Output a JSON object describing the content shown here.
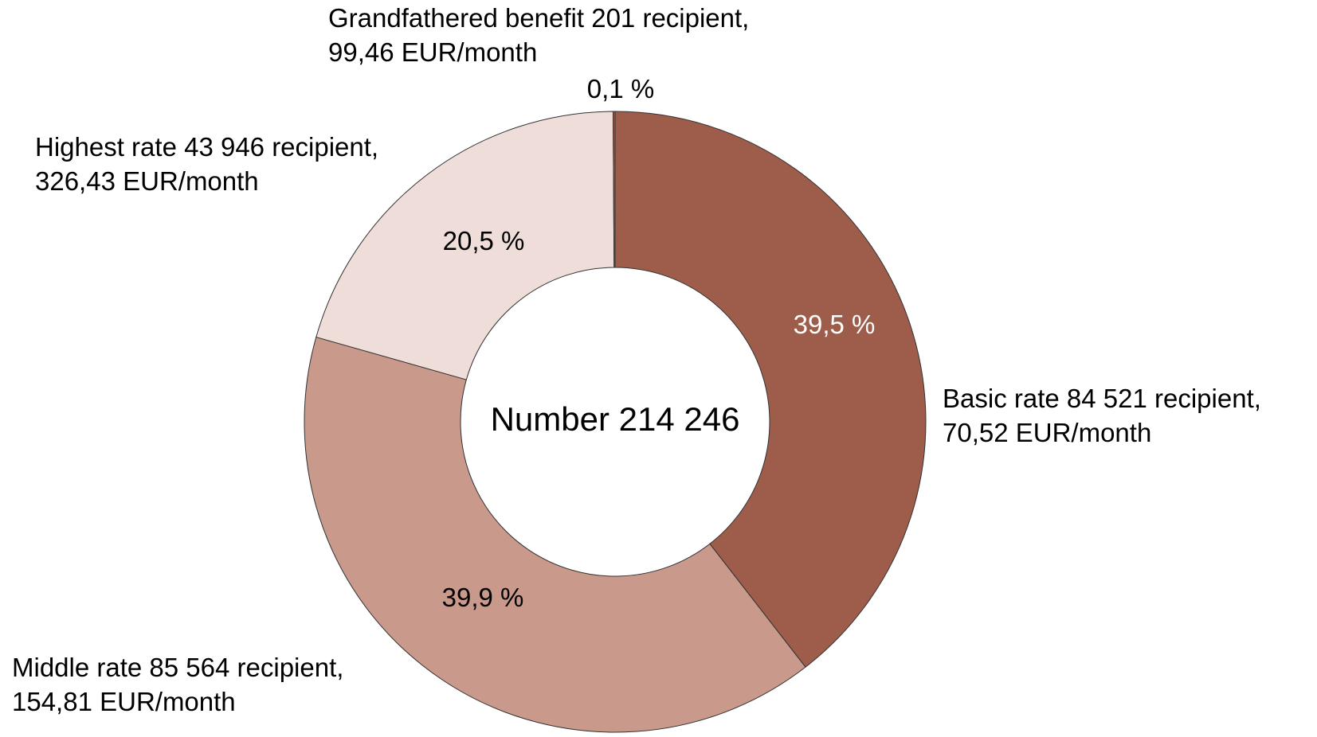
{
  "chart_data": {
    "type": "donut",
    "center_text": "Number 214 246",
    "categories": [
      [
        "Basic rate 84 521 recipient,",
        "70,52 EUR/month"
      ],
      [
        "Middle rate 85 564 recipient,",
        "154,81 EUR/month"
      ],
      [
        "Highest rate 43 946 recipient,",
        "326,43 EUR/month"
      ],
      [
        "Grandfathered benefit 201 recipient,",
        "99,46 EUR/month"
      ]
    ],
    "values": [
      39.5,
      39.9,
      20.5,
      0.1
    ],
    "value_labels": [
      "39,5 %",
      "39,9 %",
      "20,5 %",
      "0,1 %"
    ],
    "colors": [
      "#9e5c4b",
      "#c9998b",
      "#eeddd9",
      "#9e5c4b"
    ]
  }
}
